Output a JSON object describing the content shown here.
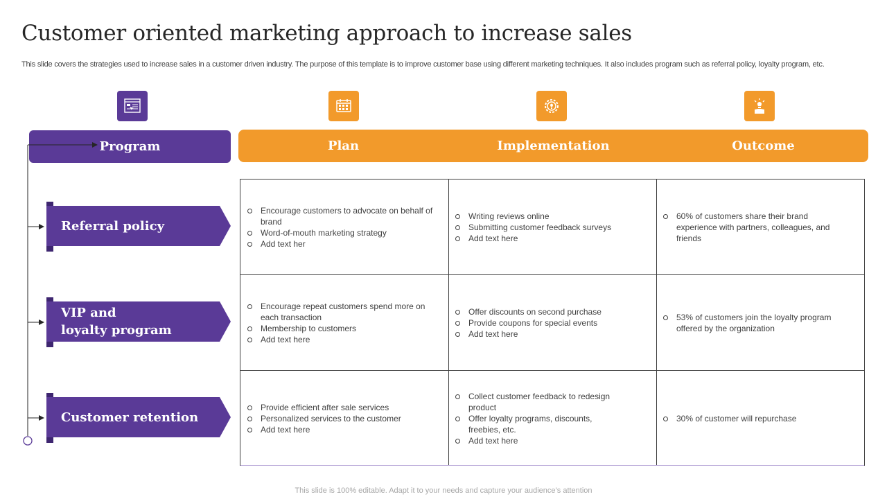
{
  "title": "Customer oriented marketing approach to increase sales",
  "subtitle": "This slide covers the strategies used to increase sales in a customer driven industry. The purpose of this template is to improve customer base using different marketing techniques. It also includes program such as referral policy, loyalty program, etc.",
  "icons": {
    "program": "presentation-board-icon",
    "plan": "calendar-icon",
    "implementation": "gear-lightbulb-icon",
    "outcome": "hand-lightbulb-icon"
  },
  "colors": {
    "purple": "#5a3a97",
    "orange": "#f29a2b"
  },
  "headers": {
    "program": "Program",
    "plan": "Plan",
    "implementation": "Implementation",
    "outcome": "Outcome"
  },
  "rows": [
    {
      "program": "Referral policy",
      "plan": [
        "Encourage  customers to advocate  on behalf of brand",
        "Word-of-mouth  marketing strategy",
        "Add text her"
      ],
      "implementation": [
        "Writing reviews  online",
        "Submitting customer feedback surveys",
        "Add text here"
      ],
      "outcome": [
        "60% of customers share their brand experience with partners, colleagues, and friends"
      ]
    },
    {
      "program": "VIP and loyalty program",
      "program_line1": "VIP and",
      "program_line2": "loyalty program",
      "plan": [
        "Encourage repeat customers spend more on each transaction",
        "Membership to customers",
        "Add text here"
      ],
      "implementation": [
        "Offer discounts on second purchase",
        "Provide  coupons for special events",
        "Add text here"
      ],
      "outcome": [
        "53% of customers join the loyalty program offered  by the organization"
      ]
    },
    {
      "program": "Customer retention",
      "plan": [
        "Provide  efficient after sale services",
        "Personalized services  to the customer",
        "Add text here"
      ],
      "implementation": [
        "Collect customer feedback to redesign product",
        "Offer loyalty programs,  discounts, freebies,  etc.",
        "Add text here"
      ],
      "outcome": [
        "30% of customer will repurchase"
      ]
    }
  ],
  "footer": "This slide is 100% editable. Adapt it to your needs and capture your audience’s attention"
}
